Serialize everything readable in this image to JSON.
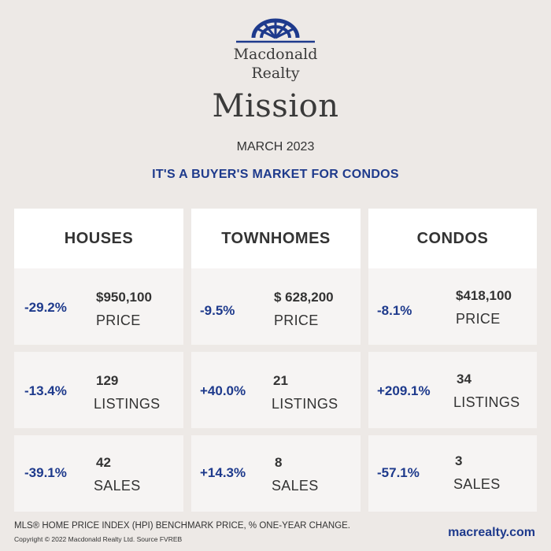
{
  "brand": {
    "line1": "Macdonald",
    "line2": "Realty",
    "color": "#1e3a8c"
  },
  "city": "Mission",
  "date": "MARCH 2023",
  "tagline": "IT'S A BUYER'S MARKET FOR CONDOS",
  "columns": [
    {
      "title": "HOUSES",
      "stats": [
        {
          "change": "-29.2%",
          "value": "$950,100",
          "label": "PRICE"
        },
        {
          "change": "-13.4%",
          "value": "129",
          "label": "LISTINGS"
        },
        {
          "change": "-39.1%",
          "value": "42",
          "label": "SALES"
        }
      ]
    },
    {
      "title": "TOWNHOMES",
      "stats": [
        {
          "change": "-9.5%",
          "value": "$ 628,200",
          "label": "PRICE"
        },
        {
          "change": "+40.0%",
          "value": "21",
          "label": "LISTINGS"
        },
        {
          "change": "+14.3%",
          "value": "8",
          "label": "SALES"
        }
      ]
    },
    {
      "title": "CONDOS",
      "stats": [
        {
          "change": "-8.1%",
          "value": "$418,100",
          "label": "PRICE"
        },
        {
          "change": "+209.1%",
          "value": "34",
          "label": "LISTINGS"
        },
        {
          "change": "-57.1%",
          "value": "3",
          "label": "SALES"
        }
      ]
    }
  ],
  "footer": {
    "note": "MLS® HOME PRICE INDEX (HPI) BENCHMARK PRICE, % ONE-YEAR CHANGE.",
    "copyright": "Copyright © 2022 Macdonald Realty Ltd. Source FVREB",
    "website": "macrealty.com"
  }
}
